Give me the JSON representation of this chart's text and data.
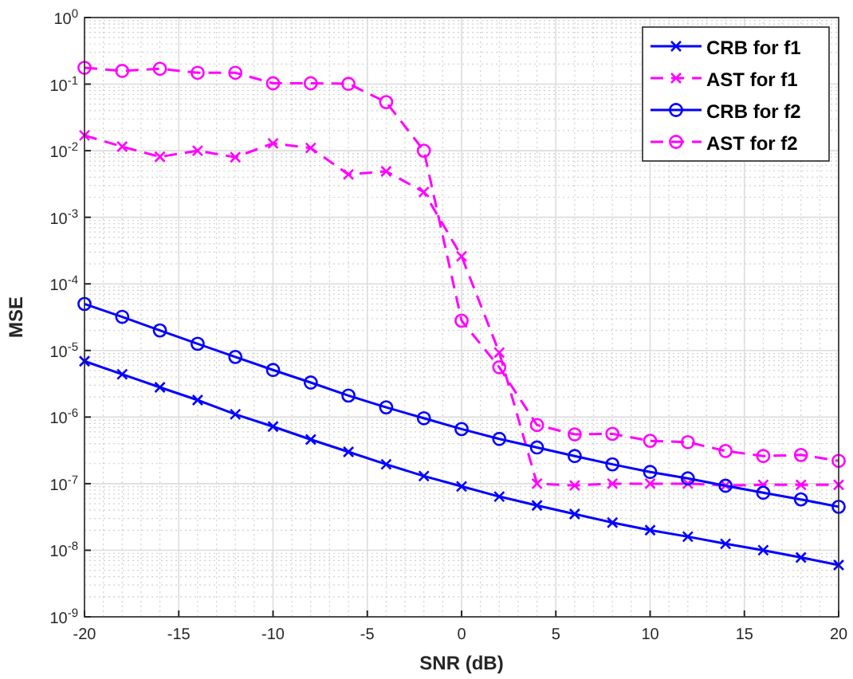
{
  "chart_data": {
    "type": "line",
    "xlabel": "SNR (dB)",
    "ylabel": "MSE",
    "log": "y",
    "grid": true,
    "legend": "top right",
    "x": [
      -20,
      -18,
      -16,
      -14,
      -12,
      -10,
      -8,
      -6,
      -4,
      -2,
      0,
      2,
      4,
      6,
      8,
      10,
      12,
      14,
      16,
      18,
      20
    ],
    "xlim": [
      -20,
      20
    ],
    "xticks": [
      -20,
      -15,
      -10,
      -5,
      0,
      5,
      10,
      15,
      20
    ],
    "ylim": [
      1e-09,
      1
    ],
    "yticks": [
      {
        "value": 1e-09,
        "label": "10$^{-9}$"
      },
      {
        "value": 1e-08,
        "label": "10$^{-8}$"
      },
      {
        "value": 1e-07,
        "label": "10$^{-7}$"
      },
      {
        "value": 1e-06,
        "label": "10$^{-6}$"
      },
      {
        "value": 1e-05,
        "label": "10$^{-5}$"
      },
      {
        "value": 0.0001,
        "label": "10$^{-4}$"
      },
      {
        "value": 0.001,
        "label": "10$^{-3}$"
      },
      {
        "value": 0.01,
        "label": "10$^{-2}$"
      },
      {
        "value": 0.1,
        "label": "10$^{-1}$"
      },
      {
        "value": 1,
        "label": "10$^{0}$"
      }
    ],
    "series": [
      {
        "name": "CRB for f1",
        "color": "#0000ff",
        "marker": "cross",
        "line_style": "solid",
        "values": [
          6.9e-06,
          4.4e-06,
          2.8e-06,
          1.8e-06,
          1.1e-06,
          7.2e-07,
          4.6e-07,
          3e-07,
          1.95e-07,
          1.3e-07,
          9.1e-08,
          6.4e-08,
          4.7e-08,
          3.5e-08,
          2.6e-08,
          2e-08,
          1.6e-08,
          1.25e-08,
          1e-08,
          7.8e-09,
          6e-09
        ]
      },
      {
        "name": "AST for f1",
        "color": "#ff00ff",
        "marker": "cross",
        "line_style": "dashed",
        "values": [
          0.017,
          0.0115,
          0.0081,
          0.01,
          0.008,
          0.0129,
          0.011,
          0.0044,
          0.0049,
          0.0024,
          0.00026,
          9.3e-06,
          1e-07,
          9.4e-08,
          1e-07,
          1e-07,
          1e-07,
          9.4e-08,
          9.6e-08,
          9.6e-08,
          9.6e-08
        ]
      },
      {
        "name": "CRB for f2",
        "color": "#0000ff",
        "marker": "circle",
        "line_style": "solid",
        "values": [
          5e-05,
          3.2e-05,
          2e-05,
          1.26e-05,
          8e-06,
          5.1e-06,
          3.3e-06,
          2.1e-06,
          1.4e-06,
          9.6e-07,
          6.6e-07,
          4.7e-07,
          3.5e-07,
          2.6e-07,
          1.95e-07,
          1.5e-07,
          1.2e-07,
          9.3e-08,
          7.3e-08,
          5.8e-08,
          4.5e-08
        ]
      },
      {
        "name": "AST for f2",
        "color": "#ff00ff",
        "marker": "circle",
        "line_style": "dashed",
        "values": [
          0.176,
          0.158,
          0.17,
          0.148,
          0.148,
          0.103,
          0.103,
          0.101,
          0.0537,
          0.01,
          2.8e-05,
          5.6e-06,
          7.6e-07,
          5.5e-07,
          5.6e-07,
          4.4e-07,
          4.2e-07,
          3.1e-07,
          2.6e-07,
          2.7e-07,
          2.2e-07
        ]
      }
    ]
  }
}
